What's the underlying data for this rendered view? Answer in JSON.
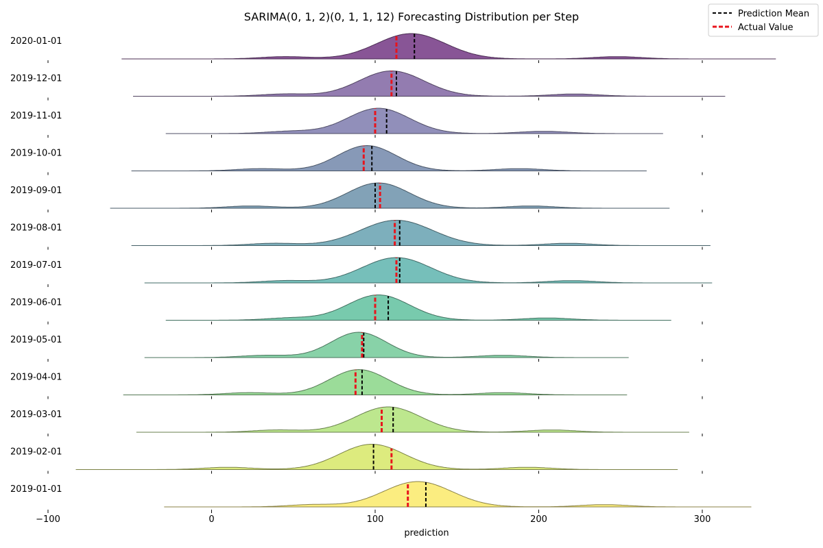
{
  "chart_data": {
    "type": "ridgeline",
    "title": "SARIMA(0, 1, 2)(0, 1, 1, 12) Forecasting Distribution per Step",
    "xlabel": "prediction",
    "ylabel": "",
    "xlim": [
      -100,
      350
    ],
    "xticks": [
      -100,
      0,
      100,
      200,
      300
    ],
    "xtick_labels": [
      "−100",
      "0",
      "100",
      "200",
      "300"
    ],
    "grid": false,
    "legend": {
      "placement": "top-right",
      "entries": [
        {
          "label": "Prediction Mean",
          "color": "#000000",
          "style": "dashed"
        },
        {
          "label": "Actual Value",
          "color": "#e8141c",
          "style": "dashed"
        }
      ]
    },
    "series": [
      {
        "date": "2020-01-01",
        "mean": 124,
        "actual": 113,
        "range": [
          -55,
          345
        ],
        "peak": 122,
        "spread": 21,
        "left_bump": 45,
        "right_bump": 248,
        "color": "#844f93"
      },
      {
        "date": "2019-12-01",
        "mean": 113,
        "actual": 110,
        "range": [
          -48,
          314
        ],
        "peak": 110,
        "spread": 20,
        "left_bump": 45,
        "right_bump": 222,
        "color": "#8f78ad"
      },
      {
        "date": "2019-11-01",
        "mean": 107,
        "actual": 100,
        "range": [
          -28,
          276
        ],
        "peak": 102,
        "spread": 19,
        "left_bump": 48,
        "right_bump": 203,
        "color": "#8d8bb8"
      },
      {
        "date": "2019-10-01",
        "mean": 98,
        "actual": 93,
        "range": [
          -49,
          266
        ],
        "peak": 95,
        "spread": 18,
        "left_bump": 30,
        "right_bump": 188,
        "color": "#8396b5"
      },
      {
        "date": "2019-09-01",
        "mean": 100,
        "actual": 103,
        "range": [
          -62,
          280
        ],
        "peak": 102,
        "spread": 19,
        "left_bump": 24,
        "right_bump": 195,
        "color": "#7e9fb5"
      },
      {
        "date": "2019-08-01",
        "mean": 115,
        "actual": 112,
        "range": [
          -49,
          305
        ],
        "peak": 113,
        "spread": 22,
        "left_bump": 38,
        "right_bump": 218,
        "color": "#79acba"
      },
      {
        "date": "2019-07-01",
        "mean": 115,
        "actual": 113,
        "range": [
          -41,
          306
        ],
        "peak": 113,
        "spread": 21,
        "left_bump": 45,
        "right_bump": 220,
        "color": "#72bdb8"
      },
      {
        "date": "2019-06-01",
        "mean": 108,
        "actual": 100,
        "range": [
          -28,
          281
        ],
        "peak": 102,
        "spread": 19,
        "left_bump": 48,
        "right_bump": 205,
        "color": "#74c8aa"
      },
      {
        "date": "2019-05-01",
        "mean": 93,
        "actual": 92,
        "range": [
          -41,
          255
        ],
        "peak": 90,
        "spread": 17,
        "left_bump": 33,
        "right_bump": 178,
        "color": "#84d1a5"
      },
      {
        "date": "2019-04-01",
        "mean": 92,
        "actual": 88,
        "range": [
          -54,
          254
        ],
        "peak": 90,
        "spread": 18,
        "left_bump": 23,
        "right_bump": 178,
        "color": "#98db96"
      },
      {
        "date": "2019-03-01",
        "mean": 111,
        "actual": 104,
        "range": [
          -46,
          292
        ],
        "peak": 108,
        "spread": 20,
        "left_bump": 40,
        "right_bump": 208,
        "color": "#bbe68a"
      },
      {
        "date": "2019-02-01",
        "mean": 99,
        "actual": 110,
        "range": [
          -83,
          285
        ],
        "peak": 98,
        "spread": 20,
        "left_bump": 10,
        "right_bump": 193,
        "color": "#dcea7a"
      },
      {
        "date": "2019-01-01",
        "mean": 131,
        "actual": 120,
        "range": [
          -29,
          330
        ],
        "peak": 126,
        "spread": 21,
        "left_bump": 62,
        "right_bump": 240,
        "color": "#fbec7c"
      }
    ]
  }
}
